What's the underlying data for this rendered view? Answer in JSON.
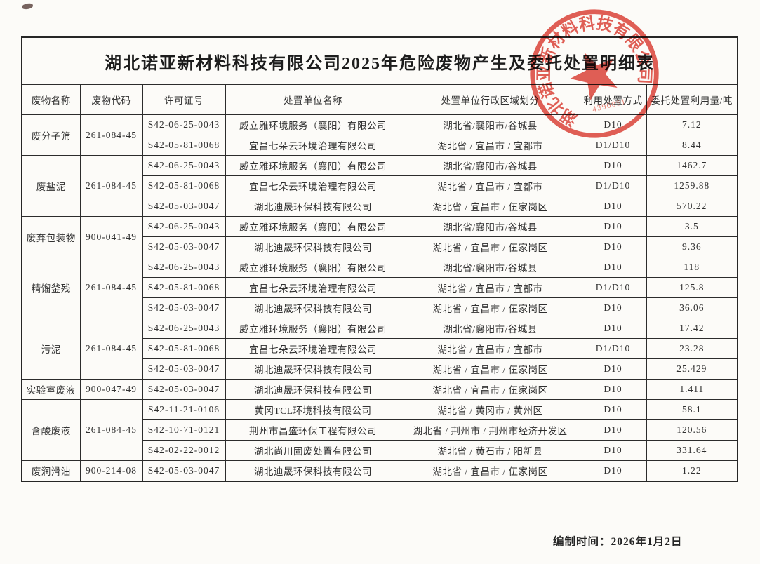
{
  "page": {
    "title": "湖北诺亚新材料科技有限公司2025年危险废物产生及委托处置明细表",
    "footer_label": "编制时间：2026年1月2日"
  },
  "stamp": {
    "company": "湖北诺亚新材料科技有限公司",
    "code_digits": "4390051",
    "color": "#d8271b"
  },
  "table": {
    "columns": [
      "废物名称",
      "废物代码",
      "许可证号",
      "处置单位名称",
      "处置单位行政区域划分",
      "利用处置方式",
      "委托处置利用量/吨"
    ],
    "groups": [
      {
        "waste": "废分子筛",
        "code": "261-084-45",
        "entries": [
          {
            "license": "S42-06-25-0043",
            "company": "威立雅环境服务（襄阳）有限公司",
            "region": "湖北省/襄阳市/谷城县",
            "method": "D10",
            "amount": "7.12"
          },
          {
            "license": "S42-05-81-0068",
            "company": "宜昌七朵云环境治理有限公司",
            "region": "湖北省 / 宜昌市 / 宜都市",
            "method": "D1/D10",
            "amount": "8.44"
          }
        ]
      },
      {
        "waste": "废盐泥",
        "code": "261-084-45",
        "entries": [
          {
            "license": "S42-06-25-0043",
            "company": "威立雅环境服务（襄阳）有限公司",
            "region": "湖北省/襄阳市/谷城县",
            "method": "D10",
            "amount": "1462.7"
          },
          {
            "license": "S42-05-81-0068",
            "company": "宜昌七朵云环境治理有限公司",
            "region": "湖北省 / 宜昌市 / 宜都市",
            "method": "D1/D10",
            "amount": "1259.88"
          },
          {
            "license": "S42-05-03-0047",
            "company": "湖北迪晟环保科技有限公司",
            "region": "湖北省 / 宜昌市 / 伍家岗区",
            "method": "D10",
            "amount": "570.22"
          }
        ]
      },
      {
        "waste": "废弃包装物",
        "code": "900-041-49",
        "entries": [
          {
            "license": "S42-06-25-0043",
            "company": "威立雅环境服务（襄阳）有限公司",
            "region": "湖北省/襄阳市/谷城县",
            "method": "D10",
            "amount": "3.5"
          },
          {
            "license": "S42-05-03-0047",
            "company": "湖北迪晟环保科技有限公司",
            "region": "湖北省 / 宜昌市 / 伍家岗区",
            "method": "D10",
            "amount": "9.36"
          }
        ]
      },
      {
        "waste": "精馏釜残",
        "code": "261-084-45",
        "entries": [
          {
            "license": "S42-06-25-0043",
            "company": "威立雅环境服务（襄阳）有限公司",
            "region": "湖北省/襄阳市/谷城县",
            "method": "D10",
            "amount": "118"
          },
          {
            "license": "S42-05-81-0068",
            "company": "宜昌七朵云环境治理有限公司",
            "region": "湖北省 / 宜昌市 / 宜都市",
            "method": "D1/D10",
            "amount": "125.8"
          },
          {
            "license": "S42-05-03-0047",
            "company": "湖北迪晟环保科技有限公司",
            "region": "湖北省 / 宜昌市 / 伍家岗区",
            "method": "D10",
            "amount": "36.06"
          }
        ]
      },
      {
        "waste": "污泥",
        "code": "261-084-45",
        "entries": [
          {
            "license": "S42-06-25-0043",
            "company": "威立雅环境服务（襄阳）有限公司",
            "region": "湖北省/襄阳市/谷城县",
            "method": "D10",
            "amount": "17.42"
          },
          {
            "license": "S42-05-81-0068",
            "company": "宜昌七朵云环境治理有限公司",
            "region": "湖北省 / 宜昌市 / 宜都市",
            "method": "D1/D10",
            "amount": "23.28"
          },
          {
            "license": "S42-05-03-0047",
            "company": "湖北迪晟环保科技有限公司",
            "region": "湖北省 / 宜昌市 / 伍家岗区",
            "method": "D10",
            "amount": "25.429"
          }
        ]
      },
      {
        "waste": "实验室废液",
        "code": "900-047-49",
        "entries": [
          {
            "license": "S42-05-03-0047",
            "company": "湖北迪晟环保科技有限公司",
            "region": "湖北省 / 宜昌市 / 伍家岗区",
            "method": "D10",
            "amount": "1.411"
          }
        ]
      },
      {
        "waste": "含酸废液",
        "code": "261-084-45",
        "entries": [
          {
            "license": "S42-11-21-0106",
            "company": "黄冈TCL环境科技有限公司",
            "region": "湖北省 / 黄冈市 / 黄州区",
            "method": "D10",
            "amount": "58.1"
          },
          {
            "license": "S42-10-71-0121",
            "company": "荆州市昌盛环保工程有限公司",
            "region": "湖北省 / 荆州市 / 荆州市经济开发区",
            "method": "D10",
            "amount": "120.56"
          },
          {
            "license": "S42-02-22-0012",
            "company": "湖北尚川固废处置有限公司",
            "region": "湖北省 / 黄石市 / 阳新县",
            "method": "D10",
            "amount": "331.64"
          }
        ]
      },
      {
        "waste": "废润滑油",
        "code": "900-214-08",
        "entries": [
          {
            "license": "S42-05-03-0047",
            "company": "湖北迪晟环保科技有限公司",
            "region": "湖北省 / 宜昌市 / 伍家岗区",
            "method": "D10",
            "amount": "1.22"
          }
        ]
      }
    ]
  }
}
